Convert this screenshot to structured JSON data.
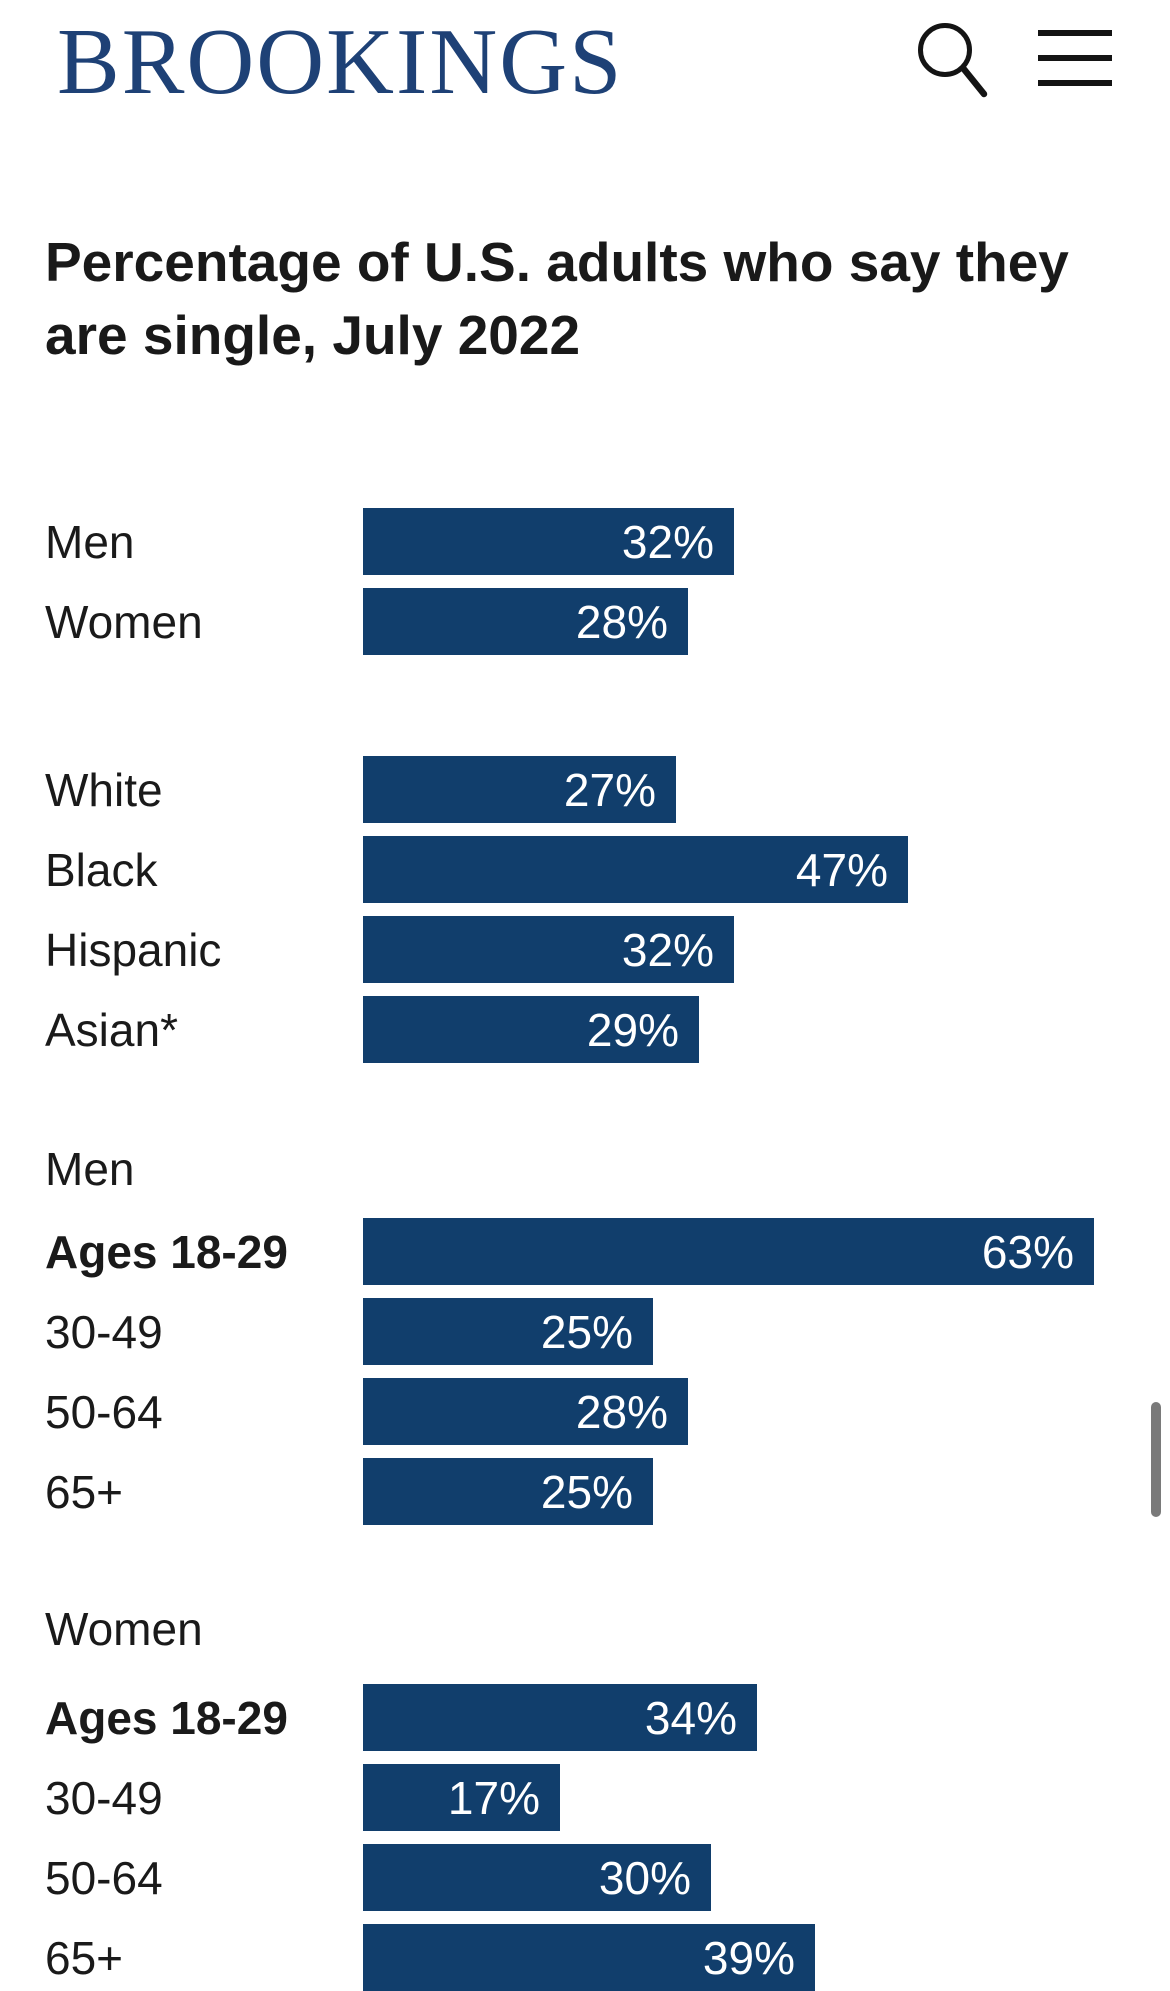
{
  "header": {
    "logo_text": "BROOKINGS",
    "logo_color": "#1E4176",
    "search_icon": "magnifying-glass",
    "menu_icon": "hamburger"
  },
  "title": {
    "line1": "Percentage of U.S. adults who say they",
    "line2": "are single, July 2022"
  },
  "chart_data": {
    "type": "bar",
    "orientation": "horizontal",
    "title": "Percentage of U.S. adults who say they are single, July 2022",
    "unit": "percent",
    "value_suffix": "%",
    "bar_color": "#113E6C",
    "value_label_color": "#FFFFFF",
    "label_color": "#1a1a1a",
    "xlim": [
      0,
      63
    ],
    "groups": [
      {
        "header": "",
        "rows": [
          {
            "label": "Men",
            "value": 32,
            "bold": false
          },
          {
            "label": "Women",
            "value": 28,
            "bold": false
          }
        ]
      },
      {
        "header": "",
        "rows": [
          {
            "label": "White",
            "value": 27,
            "bold": false
          },
          {
            "label": "Black",
            "value": 47,
            "bold": false
          },
          {
            "label": "Hispanic",
            "value": 32,
            "bold": false
          },
          {
            "label": "Asian*",
            "value": 29,
            "bold": false
          }
        ]
      },
      {
        "header": "Men",
        "rows": [
          {
            "label": "Ages 18-29",
            "value": 63,
            "bold": true
          },
          {
            "label": "30-49",
            "value": 25,
            "bold": false
          },
          {
            "label": "50-64",
            "value": 28,
            "bold": false
          },
          {
            "label": "65+",
            "value": 25,
            "bold": false
          }
        ]
      },
      {
        "header": "Women",
        "rows": [
          {
            "label": "Ages 18-29",
            "value": 34,
            "bold": true
          },
          {
            "label": "30-49",
            "value": 17,
            "bold": false
          },
          {
            "label": "50-64",
            "value": 30,
            "bold": false
          },
          {
            "label": "65+",
            "value": 39,
            "bold": false
          }
        ]
      }
    ]
  },
  "scrollbar": {
    "color": "#7A7A7A"
  }
}
